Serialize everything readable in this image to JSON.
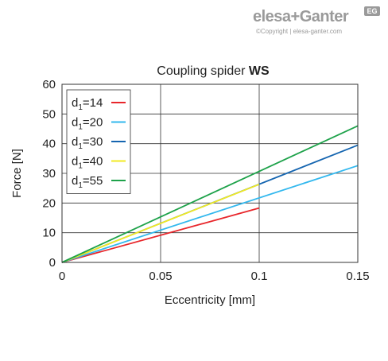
{
  "logo": {
    "text": "elesa+Ganter",
    "badge": "EG",
    "copyright": "©Copyright | elesa-ganter.com"
  },
  "chart_data": {
    "type": "line",
    "title_prefix": "Coupling spider ",
    "title_bold": "WS",
    "xlabel": "Eccentricity [mm]",
    "ylabel": "Force [N]",
    "xlim": [
      0,
      0.15
    ],
    "ylim": [
      0,
      60
    ],
    "xticks": [
      0,
      0.05,
      0.1,
      0.15
    ],
    "xtick_labels": [
      "0",
      "0.05",
      "0.1",
      "0.15"
    ],
    "yticks": [
      0,
      10,
      20,
      30,
      40,
      50,
      60
    ],
    "ytick_labels": [
      "0",
      "10",
      "20",
      "30",
      "40",
      "50",
      "60"
    ],
    "grid": true,
    "legend_position": "top-left",
    "series": [
      {
        "name": "d1=14",
        "label_main": "d",
        "label_sub": "1",
        "label_rest": "=14",
        "color": "#e8262b",
        "x": [
          0,
          0.1
        ],
        "y": [
          0,
          18.3
        ]
      },
      {
        "name": "d1=20",
        "label_main": "d",
        "label_sub": "1",
        "label_rest": "=20",
        "color": "#33b8ee",
        "x": [
          0,
          0.15
        ],
        "y": [
          0,
          32.6
        ]
      },
      {
        "name": "d1=30",
        "label_main": "d",
        "label_sub": "1",
        "label_rest": "=30",
        "color": "#1565b0",
        "x": [
          0,
          0.15
        ],
        "y": [
          0,
          39.5
        ]
      },
      {
        "name": "d1=40",
        "label_main": "d",
        "label_sub": "1",
        "label_rest": "=40",
        "color": "#f2ea22",
        "x": [
          0,
          0.1
        ],
        "y": [
          0,
          26.3
        ]
      },
      {
        "name": "d1=55",
        "label_main": "d",
        "label_sub": "1",
        "label_rest": "=55",
        "color": "#1ea24a",
        "x": [
          0,
          0.15
        ],
        "y": [
          0,
          46
        ]
      }
    ]
  }
}
